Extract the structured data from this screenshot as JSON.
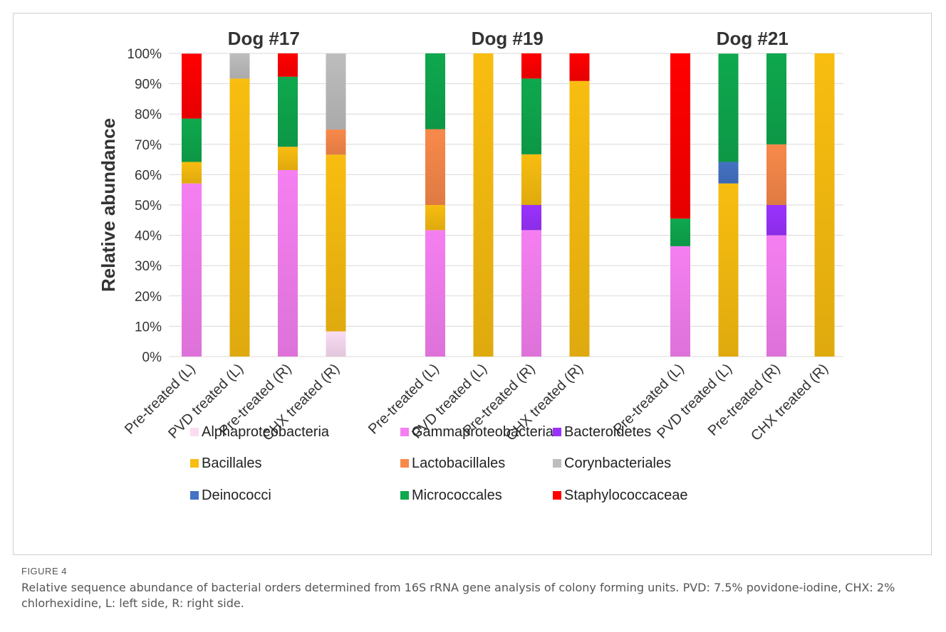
{
  "figure": {
    "label": "FIGURE 4",
    "caption": "Relative sequence abundance of bacterial orders determined from 16S rRNA gene analysis of colony forming units. PVD: 7.5% povidone-iodine, CHX: 2% chlorhexidine, L: left side, R: right side."
  },
  "chart_data": {
    "type": "bar",
    "stacked": true,
    "ylabel": "Relative abundance",
    "ylim": [
      0,
      100
    ],
    "yticks": [
      "0%",
      "10%",
      "20%",
      "30%",
      "40%",
      "50%",
      "60%",
      "70%",
      "80%",
      "90%",
      "100%"
    ],
    "grid": true,
    "legend_position": "bottom",
    "categories": [
      "Alphaproteobacteria",
      "Gammaproteobacteria",
      "Bacteroidetes",
      "Bacillales",
      "Lactobacillales",
      "Corynbacteriales",
      "Deinococci",
      "Micrococcales",
      "Staphylococcaceae"
    ],
    "colors": [
      "#fbdcf3",
      "#f57ff1",
      "#9a32ff",
      "#f8bd10",
      "#f8894a",
      "#bdbdbd",
      "#4472c4",
      "#0ea84e",
      "#ff0000"
    ],
    "groups": [
      {
        "name": "Dog #17",
        "bars": [
          {
            "label": "Pre-treated (L)",
            "values": [
              0,
              57.1,
              0,
              7.1,
              0,
              0,
              0,
              14.3,
              21.4
            ]
          },
          {
            "label": "PVD treated (L)",
            "values": [
              0,
              0,
              0,
              91.7,
              0,
              8.3,
              0,
              0,
              0
            ]
          },
          {
            "label": "Pre-treated (R)",
            "values": [
              0,
              61.5,
              0,
              7.7,
              0,
              0,
              0,
              23.1,
              7.7
            ]
          },
          {
            "label": "CHX treated (R)",
            "values": [
              8.3,
              0,
              0,
              58.3,
              8.3,
              25.0,
              0,
              0,
              0
            ]
          }
        ]
      },
      {
        "name": "Dog #19",
        "bars": [
          {
            "label": "Pre-treated (L)",
            "values": [
              0,
              41.7,
              0,
              8.3,
              25.0,
              0,
              0,
              25.0,
              0
            ]
          },
          {
            "label": "PVD treated (L)",
            "values": [
              0,
              0,
              0,
              100,
              0,
              0,
              0,
              0,
              0
            ]
          },
          {
            "label": "Pre-treated (R)",
            "values": [
              0,
              41.7,
              8.3,
              16.7,
              0,
              0,
              0,
              25.0,
              8.3
            ]
          },
          {
            "label": "CHX treated (R)",
            "values": [
              0,
              0,
              0,
              90.9,
              0,
              0,
              0,
              0,
              9.1
            ]
          }
        ]
      },
      {
        "name": "Dog #21",
        "bars": [
          {
            "label": "Pre-treated (L)",
            "values": [
              0,
              36.4,
              0,
              0,
              0,
              0,
              0,
              9.1,
              54.5
            ]
          },
          {
            "label": "PVD treated (L)",
            "values": [
              0,
              0,
              0,
              57.1,
              0,
              0,
              7.1,
              35.7,
              0
            ]
          },
          {
            "label": "Pre-treated (R)",
            "values": [
              0,
              40.0,
              10.0,
              0,
              20.0,
              0,
              0,
              30.0,
              0
            ]
          },
          {
            "label": "CHX treated (R)",
            "values": [
              0,
              0,
              0,
              100,
              0,
              0,
              0,
              0,
              0
            ]
          }
        ]
      }
    ]
  }
}
